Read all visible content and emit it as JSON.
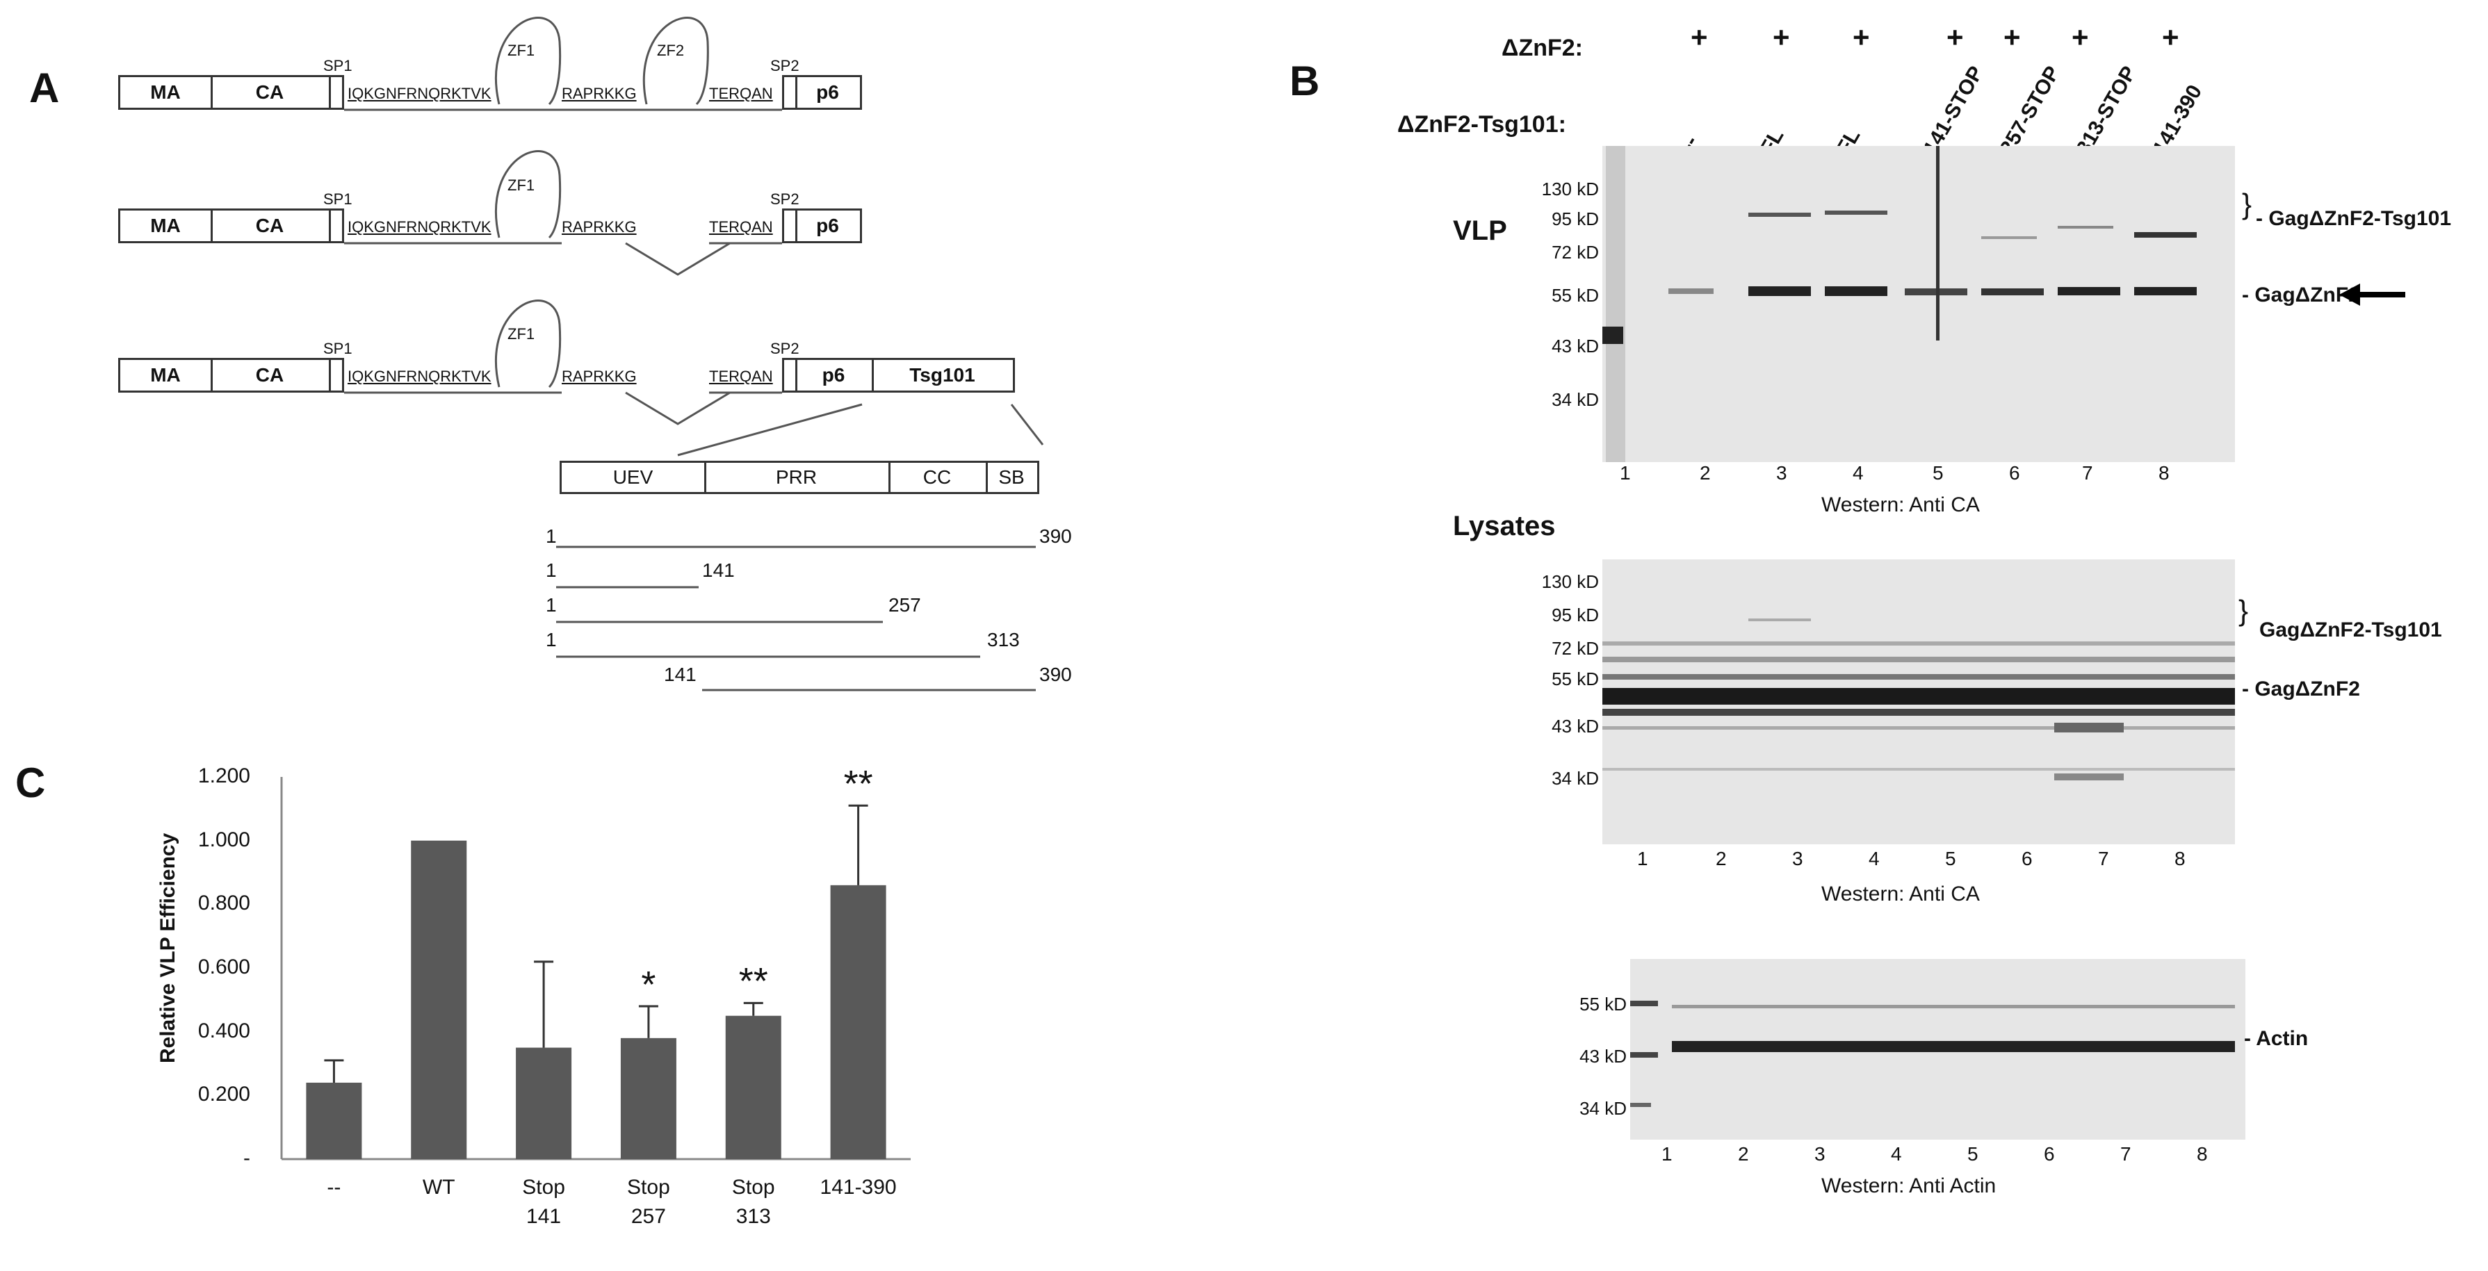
{
  "panels": {
    "a": "A",
    "b": "B",
    "c": "C"
  },
  "panel_a": {
    "domains": {
      "ma": "MA",
      "ca": "CA",
      "sp1": "SP1",
      "sp2": "SP2",
      "p6": "p6",
      "tsg": "Tsg101"
    },
    "seq_left": "IQKGNFRNQRKTVK",
    "seq_mid": "RAPRKKG",
    "seq_right": "TERQAN",
    "zf1": "ZF1",
    "zf2": "ZF2",
    "tsg_domains": [
      "UEV",
      "PRR",
      "CC",
      "SB"
    ],
    "fragments": [
      {
        "start": "1",
        "end": "390"
      },
      {
        "start": "1",
        "end": "141"
      },
      {
        "start": "1",
        "end": "257"
      },
      {
        "start": "1",
        "end": "313"
      },
      {
        "start": "141",
        "end": "390"
      }
    ]
  },
  "panel_b": {
    "row1_label": "ΔZnF2:",
    "row2_label": "ΔZnF2-Tsg101:",
    "plus": "+",
    "constructs": [
      "--",
      "FL",
      "FL",
      "141-STOP",
      "257-STOP",
      "313-STOP",
      "141-390"
    ],
    "lanes": [
      "1",
      "2",
      "3",
      "4",
      "5",
      "6",
      "7",
      "8"
    ],
    "vlp_label": "VLP",
    "lysates_label": "Lysates",
    "mw_vlp": [
      "130 kD",
      "95 kD",
      "72 kD",
      "55 kD",
      "43 kD",
      "34 kD"
    ],
    "mw_lys": [
      "130 kD",
      "95 kD",
      "72 kD",
      "55 kD",
      "43 kD",
      "34 kD"
    ],
    "mw_actin": [
      "55 kD",
      "43 kD",
      "34 kD"
    ],
    "band_fusion": "- GagΔZnF2-Tsg101",
    "band_gag": "- GagΔZnF2",
    "lys_fusion": "GagΔZnF2-Tsg101",
    "lys_gag": "- GagΔZnF2",
    "actin": "- Actin",
    "western_ca": "Western: Anti CA",
    "western_actin": "Western: Anti Actin",
    "arrow": "arrow-left"
  },
  "chart_data": {
    "type": "bar",
    "categories": [
      "--",
      "WT",
      "Stop\n141",
      "Stop\n257",
      "Stop\n313",
      "141-390"
    ],
    "values": [
      0.24,
      1.0,
      0.35,
      0.38,
      0.45,
      0.86
    ],
    "errors": [
      0.07,
      0.0,
      0.27,
      0.1,
      0.04,
      0.25
    ],
    "significance": [
      "",
      "",
      "",
      "*",
      "**",
      "**"
    ],
    "ylabel": "Relative VLP Efficiency",
    "yticks": [
      "1.200",
      "1.000",
      "0.800",
      "0.600",
      "0.400",
      "0.200",
      "-"
    ],
    "ylim": [
      0,
      1.2
    ],
    "bar_color": "#595959"
  }
}
